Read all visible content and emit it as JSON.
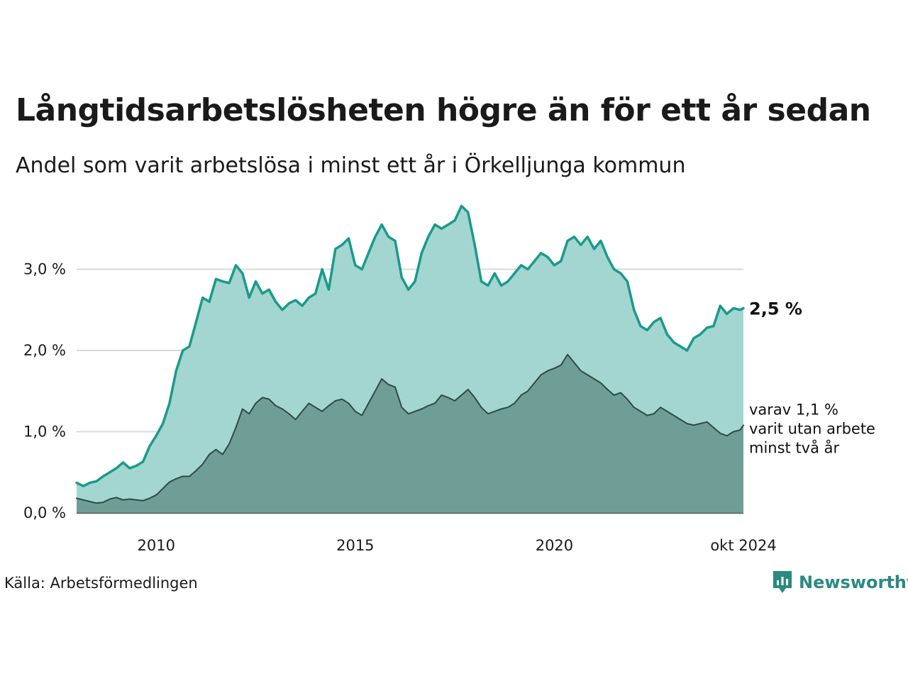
{
  "header": {
    "title": "Långtidsarbetslösheten högre än för ett år sedan",
    "subtitle": "Andel som varit arbetslösa i minst ett år i Örkelljunga kommun"
  },
  "footer": {
    "source": "Källa: Arbetsförmedlingen",
    "brand": "Newsworthy"
  },
  "colors": {
    "main_line": "#1a9a8a",
    "main_fill": "#a3d6d0",
    "sub_line": "#2f4a44",
    "sub_fill": "#6f9e97",
    "grid": "#d9d9d9",
    "brand": "#2a8a82"
  },
  "chart_data": {
    "type": "area",
    "x_start": "2008-01",
    "x_end": "2024-10",
    "x_ticks": [
      {
        "date": "2010-01",
        "label": "2010"
      },
      {
        "date": "2015-01",
        "label": "2015"
      },
      {
        "date": "2020-01",
        "label": "2020"
      },
      {
        "date": "2024-10",
        "label": "okt 2024"
      }
    ],
    "y_ticks": [
      {
        "value": 0,
        "label": "0,0 %"
      },
      {
        "value": 1,
        "label": "1,0 %"
      },
      {
        "value": 2,
        "label": "2,0 %"
      },
      {
        "value": 3,
        "label": "3,0 %"
      }
    ],
    "ylim": [
      0,
      3.8
    ],
    "grid": true,
    "series": [
      {
        "key": "main",
        "end_label": "2,5 %",
        "values": [
          [
            "2008-01",
            0.37
          ],
          [
            "2008-03",
            0.33
          ],
          [
            "2008-05",
            0.37
          ],
          [
            "2008-07",
            0.39
          ],
          [
            "2008-09",
            0.45
          ],
          [
            "2008-11",
            0.5
          ],
          [
            "2009-01",
            0.55
          ],
          [
            "2009-03",
            0.62
          ],
          [
            "2009-05",
            0.55
          ],
          [
            "2009-07",
            0.58
          ],
          [
            "2009-09",
            0.63
          ],
          [
            "2009-11",
            0.82
          ],
          [
            "2010-01",
            0.95
          ],
          [
            "2010-03",
            1.1
          ],
          [
            "2010-05",
            1.35
          ],
          [
            "2010-07",
            1.75
          ],
          [
            "2010-09",
            2.0
          ],
          [
            "2010-11",
            2.05
          ],
          [
            "2011-01",
            2.35
          ],
          [
            "2011-03",
            2.65
          ],
          [
            "2011-05",
            2.6
          ],
          [
            "2011-07",
            2.88
          ],
          [
            "2011-09",
            2.85
          ],
          [
            "2011-11",
            2.83
          ],
          [
            "2012-01",
            3.05
          ],
          [
            "2012-03",
            2.95
          ],
          [
            "2012-05",
            2.65
          ],
          [
            "2012-07",
            2.85
          ],
          [
            "2012-09",
            2.7
          ],
          [
            "2012-11",
            2.75
          ],
          [
            "2013-01",
            2.6
          ],
          [
            "2013-03",
            2.5
          ],
          [
            "2013-05",
            2.58
          ],
          [
            "2013-07",
            2.62
          ],
          [
            "2013-09",
            2.55
          ],
          [
            "2013-11",
            2.65
          ],
          [
            "2014-01",
            2.7
          ],
          [
            "2014-03",
            3.0
          ],
          [
            "2014-05",
            2.75
          ],
          [
            "2014-07",
            3.25
          ],
          [
            "2014-09",
            3.3
          ],
          [
            "2014-11",
            3.38
          ],
          [
            "2015-01",
            3.05
          ],
          [
            "2015-03",
            3.0
          ],
          [
            "2015-05",
            3.2
          ],
          [
            "2015-07",
            3.4
          ],
          [
            "2015-09",
            3.55
          ],
          [
            "2015-11",
            3.4
          ],
          [
            "2016-01",
            3.35
          ],
          [
            "2016-03",
            2.9
          ],
          [
            "2016-05",
            2.75
          ],
          [
            "2016-07",
            2.85
          ],
          [
            "2016-09",
            3.2
          ],
          [
            "2016-11",
            3.4
          ],
          [
            "2017-01",
            3.55
          ],
          [
            "2017-03",
            3.5
          ],
          [
            "2017-05",
            3.55
          ],
          [
            "2017-07",
            3.6
          ],
          [
            "2017-09",
            3.78
          ],
          [
            "2017-11",
            3.7
          ],
          [
            "2018-01",
            3.3
          ],
          [
            "2018-03",
            2.85
          ],
          [
            "2018-05",
            2.8
          ],
          [
            "2018-07",
            2.95
          ],
          [
            "2018-09",
            2.8
          ],
          [
            "2018-11",
            2.85
          ],
          [
            "2019-01",
            2.95
          ],
          [
            "2019-03",
            3.05
          ],
          [
            "2019-05",
            3.0
          ],
          [
            "2019-07",
            3.1
          ],
          [
            "2019-09",
            3.2
          ],
          [
            "2019-11",
            3.15
          ],
          [
            "2020-01",
            3.05
          ],
          [
            "2020-03",
            3.1
          ],
          [
            "2020-05",
            3.35
          ],
          [
            "2020-07",
            3.4
          ],
          [
            "2020-09",
            3.3
          ],
          [
            "2020-11",
            3.4
          ],
          [
            "2021-01",
            3.25
          ],
          [
            "2021-03",
            3.35
          ],
          [
            "2021-05",
            3.15
          ],
          [
            "2021-07",
            3.0
          ],
          [
            "2021-09",
            2.95
          ],
          [
            "2021-11",
            2.85
          ],
          [
            "2022-01",
            2.5
          ],
          [
            "2022-03",
            2.3
          ],
          [
            "2022-05",
            2.25
          ],
          [
            "2022-07",
            2.35
          ],
          [
            "2022-09",
            2.4
          ],
          [
            "2022-11",
            2.2
          ],
          [
            "2023-01",
            2.1
          ],
          [
            "2023-03",
            2.05
          ],
          [
            "2023-05",
            2.0
          ],
          [
            "2023-07",
            2.15
          ],
          [
            "2023-09",
            2.2
          ],
          [
            "2023-11",
            2.28
          ],
          [
            "2024-01",
            2.3
          ],
          [
            "2024-03",
            2.55
          ],
          [
            "2024-05",
            2.45
          ],
          [
            "2024-07",
            2.52
          ],
          [
            "2024-09",
            2.5
          ],
          [
            "2024-10",
            2.52
          ]
        ]
      },
      {
        "key": "sub",
        "end_label": "varav 1,1 % varit utan arbete minst två år",
        "end_label_lines": [
          "varav 1,1 %",
          "varit utan arbete",
          "minst två år"
        ],
        "values": [
          [
            "2008-01",
            0.18
          ],
          [
            "2008-03",
            0.16
          ],
          [
            "2008-05",
            0.14
          ],
          [
            "2008-07",
            0.12
          ],
          [
            "2008-09",
            0.13
          ],
          [
            "2008-11",
            0.17
          ],
          [
            "2009-01",
            0.19
          ],
          [
            "2009-03",
            0.16
          ],
          [
            "2009-05",
            0.17
          ],
          [
            "2009-07",
            0.16
          ],
          [
            "2009-09",
            0.15
          ],
          [
            "2009-11",
            0.18
          ],
          [
            "2010-01",
            0.22
          ],
          [
            "2010-03",
            0.3
          ],
          [
            "2010-05",
            0.38
          ],
          [
            "2010-07",
            0.42
          ],
          [
            "2010-09",
            0.45
          ],
          [
            "2010-11",
            0.45
          ],
          [
            "2011-01",
            0.52
          ],
          [
            "2011-03",
            0.6
          ],
          [
            "2011-05",
            0.72
          ],
          [
            "2011-07",
            0.78
          ],
          [
            "2011-09",
            0.72
          ],
          [
            "2011-11",
            0.85
          ],
          [
            "2012-01",
            1.05
          ],
          [
            "2012-03",
            1.28
          ],
          [
            "2012-05",
            1.22
          ],
          [
            "2012-07",
            1.35
          ],
          [
            "2012-09",
            1.42
          ],
          [
            "2012-11",
            1.4
          ],
          [
            "2013-01",
            1.32
          ],
          [
            "2013-03",
            1.28
          ],
          [
            "2013-05",
            1.22
          ],
          [
            "2013-07",
            1.15
          ],
          [
            "2013-09",
            1.25
          ],
          [
            "2013-11",
            1.35
          ],
          [
            "2014-01",
            1.3
          ],
          [
            "2014-03",
            1.25
          ],
          [
            "2014-05",
            1.32
          ],
          [
            "2014-07",
            1.38
          ],
          [
            "2014-09",
            1.4
          ],
          [
            "2014-11",
            1.35
          ],
          [
            "2015-01",
            1.25
          ],
          [
            "2015-03",
            1.2
          ],
          [
            "2015-05",
            1.35
          ],
          [
            "2015-07",
            1.5
          ],
          [
            "2015-09",
            1.65
          ],
          [
            "2015-11",
            1.58
          ],
          [
            "2016-01",
            1.55
          ],
          [
            "2016-03",
            1.3
          ],
          [
            "2016-05",
            1.22
          ],
          [
            "2016-07",
            1.25
          ],
          [
            "2016-09",
            1.28
          ],
          [
            "2016-11",
            1.32
          ],
          [
            "2017-01",
            1.35
          ],
          [
            "2017-03",
            1.45
          ],
          [
            "2017-05",
            1.42
          ],
          [
            "2017-07",
            1.38
          ],
          [
            "2017-09",
            1.45
          ],
          [
            "2017-11",
            1.52
          ],
          [
            "2018-01",
            1.42
          ],
          [
            "2018-03",
            1.3
          ],
          [
            "2018-05",
            1.22
          ],
          [
            "2018-07",
            1.25
          ],
          [
            "2018-09",
            1.28
          ],
          [
            "2018-11",
            1.3
          ],
          [
            "2019-01",
            1.35
          ],
          [
            "2019-03",
            1.45
          ],
          [
            "2019-05",
            1.5
          ],
          [
            "2019-07",
            1.6
          ],
          [
            "2019-09",
            1.7
          ],
          [
            "2019-11",
            1.75
          ],
          [
            "2020-01",
            1.78
          ],
          [
            "2020-03",
            1.82
          ],
          [
            "2020-05",
            1.95
          ],
          [
            "2020-07",
            1.85
          ],
          [
            "2020-09",
            1.75
          ],
          [
            "2020-11",
            1.7
          ],
          [
            "2021-01",
            1.65
          ],
          [
            "2021-03",
            1.6
          ],
          [
            "2021-05",
            1.52
          ],
          [
            "2021-07",
            1.45
          ],
          [
            "2021-09",
            1.48
          ],
          [
            "2021-11",
            1.4
          ],
          [
            "2022-01",
            1.3
          ],
          [
            "2022-03",
            1.25
          ],
          [
            "2022-05",
            1.2
          ],
          [
            "2022-07",
            1.22
          ],
          [
            "2022-09",
            1.3
          ],
          [
            "2022-11",
            1.25
          ],
          [
            "2023-01",
            1.2
          ],
          [
            "2023-03",
            1.15
          ],
          [
            "2023-05",
            1.1
          ],
          [
            "2023-07",
            1.08
          ],
          [
            "2023-09",
            1.1
          ],
          [
            "2023-11",
            1.12
          ],
          [
            "2024-01",
            1.05
          ],
          [
            "2024-03",
            0.98
          ],
          [
            "2024-05",
            0.95
          ],
          [
            "2024-07",
            1.0
          ],
          [
            "2024-09",
            1.02
          ],
          [
            "2024-10",
            1.08
          ]
        ]
      }
    ]
  }
}
